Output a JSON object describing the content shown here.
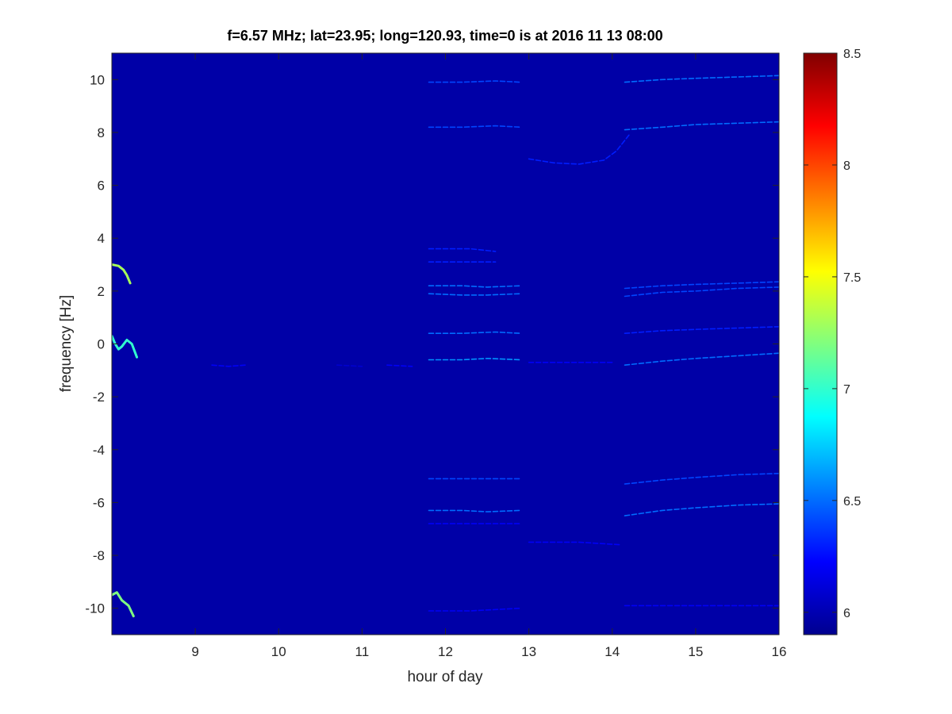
{
  "chart_data": {
    "type": "heatmap",
    "title": "f=6.57 MHz;  lat=23.95; long=120.93, time=0 is at 2016 11 13 08:00",
    "xlabel": "hour of day",
    "ylabel": "frequency [Hz]",
    "xlim": [
      8,
      16
    ],
    "ylim": [
      -11,
      11
    ],
    "x_ticks": [
      9,
      10,
      11,
      12,
      13,
      14,
      15,
      16
    ],
    "y_ticks": [
      -10,
      -8,
      -6,
      -4,
      -2,
      0,
      2,
      4,
      6,
      8,
      10
    ],
    "colorbar": {
      "range": [
        5.9,
        8.5
      ],
      "ticks": [
        6,
        6.5,
        7,
        7.5,
        8,
        8.5
      ],
      "colormap": "jet"
    },
    "background_value": 6.0,
    "colors": {
      "background": "#00008f",
      "axis": "#262626"
    },
    "traces": [
      {
        "value": 6.4,
        "points": [
          [
            11.8,
            9.9
          ],
          [
            12.2,
            9.9
          ],
          [
            12.6,
            9.95
          ],
          [
            12.9,
            9.9
          ]
        ]
      },
      {
        "value": 6.4,
        "points": [
          [
            11.8,
            8.2
          ],
          [
            12.2,
            8.2
          ],
          [
            12.6,
            8.25
          ],
          [
            12.9,
            8.2
          ]
        ]
      },
      {
        "value": 6.3,
        "points": [
          [
            11.8,
            3.6
          ],
          [
            12.3,
            3.6
          ],
          [
            12.6,
            3.5
          ]
        ]
      },
      {
        "value": 6.3,
        "points": [
          [
            11.8,
            3.1
          ],
          [
            12.3,
            3.1
          ],
          [
            12.6,
            3.1
          ]
        ]
      },
      {
        "value": 6.5,
        "points": [
          [
            11.8,
            2.2
          ],
          [
            12.2,
            2.2
          ],
          [
            12.5,
            2.15
          ],
          [
            12.9,
            2.2
          ]
        ]
      },
      {
        "value": 6.5,
        "points": [
          [
            11.8,
            1.9
          ],
          [
            12.2,
            1.85
          ],
          [
            12.5,
            1.85
          ],
          [
            12.9,
            1.9
          ]
        ]
      },
      {
        "value": 6.5,
        "points": [
          [
            11.8,
            0.4
          ],
          [
            12.2,
            0.4
          ],
          [
            12.6,
            0.45
          ],
          [
            12.9,
            0.4
          ]
        ]
      },
      {
        "value": 6.6,
        "points": [
          [
            11.8,
            -0.6
          ],
          [
            12.2,
            -0.6
          ],
          [
            12.5,
            -0.55
          ],
          [
            12.9,
            -0.6
          ]
        ]
      },
      {
        "value": 6.4,
        "points": [
          [
            11.8,
            -5.1
          ],
          [
            12.2,
            -5.1
          ],
          [
            12.6,
            -5.1
          ],
          [
            12.9,
            -5.1
          ]
        ]
      },
      {
        "value": 6.5,
        "points": [
          [
            11.8,
            -6.3
          ],
          [
            12.2,
            -6.3
          ],
          [
            12.5,
            -6.35
          ],
          [
            12.9,
            -6.3
          ]
        ]
      },
      {
        "value": 6.2,
        "points": [
          [
            11.8,
            -6.8
          ],
          [
            12.4,
            -6.8
          ],
          [
            12.9,
            -6.8
          ]
        ]
      },
      {
        "value": 6.2,
        "points": [
          [
            11.8,
            -10.1
          ],
          [
            12.3,
            -10.1
          ],
          [
            12.9,
            -10.0
          ]
        ]
      },
      {
        "value": 6.3,
        "points": [
          [
            13.0,
            7.0
          ],
          [
            13.3,
            6.85
          ],
          [
            13.6,
            6.8
          ],
          [
            13.9,
            6.95
          ],
          [
            14.05,
            7.3
          ],
          [
            14.2,
            7.9
          ]
        ]
      },
      {
        "value": 6.2,
        "points": [
          [
            13.0,
            -0.7
          ],
          [
            13.5,
            -0.7
          ],
          [
            14.0,
            -0.7
          ]
        ]
      },
      {
        "value": 6.2,
        "points": [
          [
            13.0,
            -7.5
          ],
          [
            13.6,
            -7.5
          ],
          [
            14.1,
            -7.6
          ]
        ]
      },
      {
        "value": 6.5,
        "points": [
          [
            14.15,
            9.9
          ],
          [
            14.6,
            10.0
          ],
          [
            15.0,
            10.05
          ],
          [
            15.5,
            10.1
          ],
          [
            16.0,
            10.15
          ]
        ]
      },
      {
        "value": 6.5,
        "points": [
          [
            14.15,
            8.1
          ],
          [
            14.6,
            8.2
          ],
          [
            15.0,
            8.3
          ],
          [
            15.5,
            8.35
          ],
          [
            16.0,
            8.4
          ]
        ]
      },
      {
        "value": 6.4,
        "points": [
          [
            14.15,
            2.1
          ],
          [
            14.6,
            2.2
          ],
          [
            15.0,
            2.25
          ],
          [
            15.5,
            2.3
          ],
          [
            16.0,
            2.35
          ]
        ]
      },
      {
        "value": 6.4,
        "points": [
          [
            14.15,
            1.8
          ],
          [
            14.6,
            1.95
          ],
          [
            15.0,
            2.0
          ],
          [
            15.5,
            2.1
          ],
          [
            16.0,
            2.15
          ]
        ]
      },
      {
        "value": 6.3,
        "points": [
          [
            14.15,
            0.4
          ],
          [
            14.6,
            0.5
          ],
          [
            15.0,
            0.55
          ],
          [
            15.5,
            0.6
          ],
          [
            16.0,
            0.65
          ]
        ]
      },
      {
        "value": 6.5,
        "points": [
          [
            14.15,
            -0.8
          ],
          [
            14.6,
            -0.65
          ],
          [
            15.0,
            -0.55
          ],
          [
            15.5,
            -0.45
          ],
          [
            16.0,
            -0.35
          ]
        ]
      },
      {
        "value": 6.4,
        "points": [
          [
            14.15,
            -5.3
          ],
          [
            14.6,
            -5.15
          ],
          [
            15.0,
            -5.05
          ],
          [
            15.5,
            -4.95
          ],
          [
            16.0,
            -4.9
          ]
        ]
      },
      {
        "value": 6.5,
        "points": [
          [
            14.15,
            -6.5
          ],
          [
            14.6,
            -6.3
          ],
          [
            15.0,
            -6.2
          ],
          [
            15.5,
            -6.1
          ],
          [
            16.0,
            -6.05
          ]
        ]
      },
      {
        "value": 6.2,
        "points": [
          [
            14.15,
            -9.9
          ],
          [
            15.0,
            -9.9
          ],
          [
            16.0,
            -9.9
          ]
        ]
      },
      {
        "value": 6.2,
        "points": [
          [
            9.2,
            -0.8
          ],
          [
            9.4,
            -0.85
          ],
          [
            9.6,
            -0.8
          ]
        ]
      },
      {
        "value": 6.1,
        "points": [
          [
            10.7,
            -0.8
          ],
          [
            11.0,
            -0.85
          ]
        ]
      },
      {
        "value": 6.2,
        "points": [
          [
            11.3,
            -0.8
          ],
          [
            11.6,
            -0.85
          ]
        ]
      },
      {
        "value": 7.3,
        "points": [
          [
            8.0,
            3.0
          ],
          [
            8.08,
            2.95
          ],
          [
            8.14,
            2.8
          ],
          [
            8.18,
            2.6
          ],
          [
            8.22,
            2.3
          ]
        ]
      },
      {
        "value": 7.0,
        "points": [
          [
            8.0,
            0.3
          ],
          [
            8.04,
            0.0
          ],
          [
            8.08,
            -0.2
          ],
          [
            8.12,
            -0.1
          ],
          [
            8.18,
            0.15
          ],
          [
            8.24,
            0.0
          ],
          [
            8.3,
            -0.5
          ]
        ]
      },
      {
        "value": 7.2,
        "points": [
          [
            8.0,
            -9.5
          ],
          [
            8.06,
            -9.4
          ],
          [
            8.12,
            -9.7
          ],
          [
            8.2,
            -9.9
          ],
          [
            8.26,
            -10.3
          ]
        ]
      }
    ]
  }
}
